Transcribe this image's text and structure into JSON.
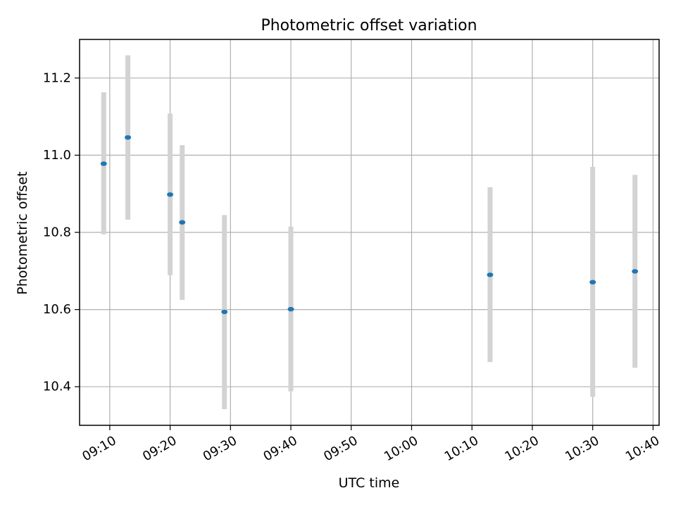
{
  "chart_data": {
    "type": "scatter",
    "title": "Photometric offset variation",
    "xlabel": "UTC time",
    "ylabel": "Photometric offset",
    "x_unit": "time of day (HH:MM)",
    "xlim": [
      "09:05",
      "10:41"
    ],
    "ylim": [
      10.3,
      11.3
    ],
    "x_ticks": [
      "09:10",
      "09:20",
      "09:30",
      "09:40",
      "09:50",
      "10:00",
      "10:10",
      "10:20",
      "10:30",
      "10:40"
    ],
    "y_ticks": [
      10.4,
      10.6,
      10.8,
      11.0,
      11.2
    ],
    "y_tick_labels": [
      "10.4",
      "10.6",
      "10.8",
      "11.0",
      "11.2"
    ],
    "grid": true,
    "marker_color": "#1f77b4",
    "errorbar_color": "#d3d3d3",
    "points": [
      {
        "x": "09:09",
        "y": 10.978,
        "low": 10.795,
        "high": 11.163
      },
      {
        "x": "09:13",
        "y": 11.046,
        "low": 10.833,
        "high": 11.259
      },
      {
        "x": "09:20",
        "y": 10.898,
        "low": 10.689,
        "high": 11.108
      },
      {
        "x": "09:22",
        "y": 10.826,
        "low": 10.625,
        "high": 11.026
      },
      {
        "x": "09:29",
        "y": 10.594,
        "low": 10.342,
        "high": 10.845
      },
      {
        "x": "09:40",
        "y": 10.601,
        "low": 10.388,
        "high": 10.815
      },
      {
        "x": "10:13",
        "y": 10.69,
        "low": 10.464,
        "high": 10.917
      },
      {
        "x": "10:30",
        "y": 10.671,
        "low": 10.374,
        "high": 10.97
      },
      {
        "x": "10:37",
        "y": 10.699,
        "low": 10.449,
        "high": 10.949
      }
    ]
  }
}
